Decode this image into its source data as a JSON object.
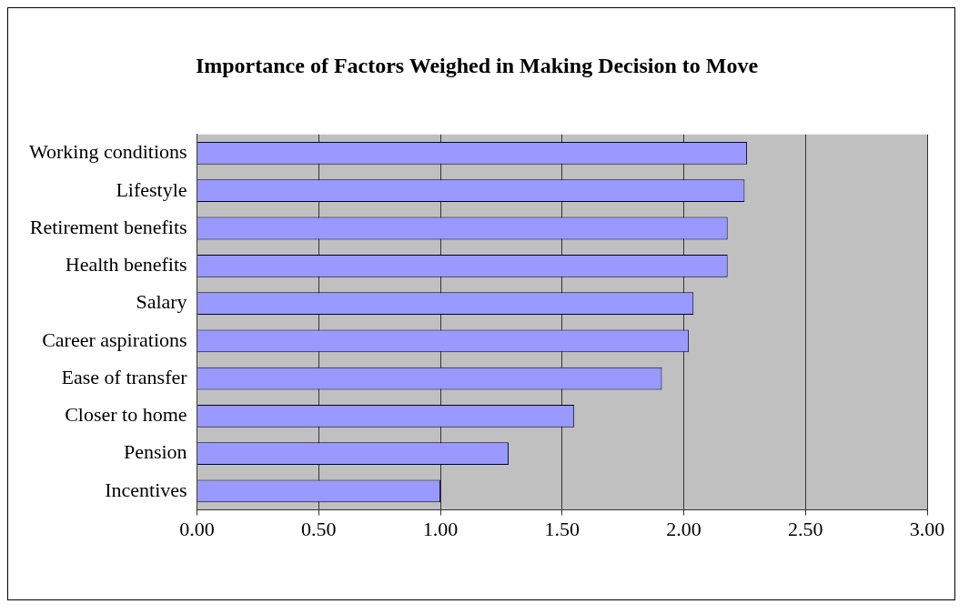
{
  "chart_data": {
    "type": "bar",
    "orientation": "horizontal",
    "title": "Importance of Factors Weighed in Making Decision to Move",
    "categories": [
      "Working conditions",
      "Lifestyle",
      "Retirement benefits",
      "Health benefits",
      "Salary",
      "Career aspirations",
      "Ease of transfer",
      "Closer to home",
      "Pension",
      "Incentives"
    ],
    "values": [
      2.26,
      2.25,
      2.18,
      2.18,
      2.04,
      2.02,
      1.91,
      1.55,
      1.28,
      1.0
    ],
    "color": "#9999ff",
    "xlim": [
      0,
      3
    ],
    "xticks": [
      {
        "value": 0,
        "label": "0.00"
      },
      {
        "value": 0.5,
        "label": "0.50"
      },
      {
        "value": 1,
        "label": "1.00"
      },
      {
        "value": 1.5,
        "label": "1.50"
      },
      {
        "value": 2,
        "label": "2.00"
      },
      {
        "value": 2.5,
        "label": "2.50"
      },
      {
        "value": 3,
        "label": "3.00"
      }
    ],
    "grid": "x",
    "legend": false
  }
}
